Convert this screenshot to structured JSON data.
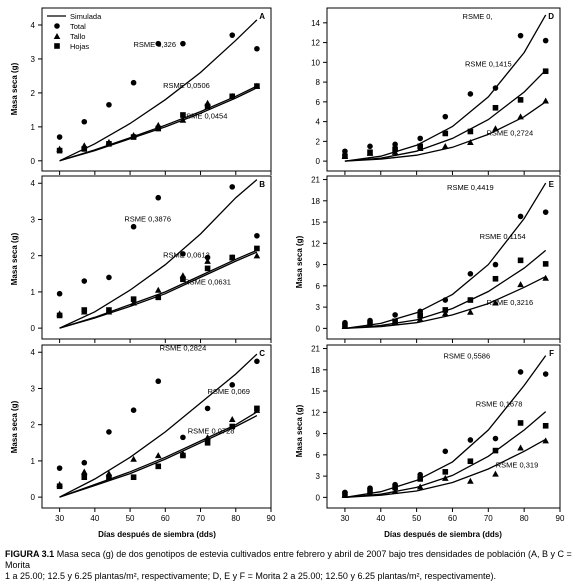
{
  "caption": {
    "label": "FIGURA 3.1",
    "line1": "Masa seca (g) de dos genotipos de estevia cultivados entre febrero y abril de 2007 bajo tres densidades de población (A, B y C = Morita",
    "line2": "1 a 25.00; 12.5 y 6.25 plantas/m², respectivamente; D, E y F = Morita 2 a 25.00; 12.50 y 6.25 plantas/m², respectivamente)."
  },
  "xlabel_left": "Días después de siembra (dds)",
  "xlabel_right": "Días después de siembra (dds)",
  "chart_data": [
    {
      "type": "scatter",
      "panel": "A",
      "ylabel": "Masa seca (g)",
      "xlim": [
        25,
        90
      ],
      "ylim": [
        -0.3,
        4.5
      ],
      "yticks": [
        0,
        1,
        2,
        3,
        4
      ],
      "xticks": [
        30,
        40,
        50,
        60,
        70,
        80,
        90
      ],
      "show_xticks": false,
      "legend": {
        "placement": "top-left",
        "entries": [
          "Simulada",
          "Total",
          "Tallo",
          "Hojas"
        ]
      },
      "series": [
        {
          "name": "Total",
          "marker": "circle",
          "x": [
            30,
            37,
            44,
            51,
            58,
            65,
            79,
            86
          ],
          "y": [
            0.7,
            1.15,
            1.65,
            2.3,
            3.45,
            3.45,
            3.7,
            3.3
          ]
        },
        {
          "name": "Tallo",
          "marker": "triangle",
          "x": [
            30,
            37,
            44,
            51,
            58,
            65,
            72,
            79,
            86
          ],
          "y": [
            0.35,
            0.45,
            0.55,
            0.75,
            1.05,
            1.2,
            1.7,
            1.9,
            2.2
          ]
        },
        {
          "name": "Hojas",
          "marker": "square",
          "x": [
            30,
            37,
            44,
            51,
            58,
            65,
            72,
            79,
            86
          ],
          "y": [
            0.3,
            0.35,
            0.5,
            0.7,
            0.95,
            1.35,
            1.6,
            1.9,
            2.2
          ]
        }
      ],
      "simulated": [
        {
          "x": [
            30,
            40,
            50,
            60,
            70,
            80,
            86
          ],
          "y": [
            0.0,
            0.5,
            1.1,
            1.8,
            2.6,
            3.55,
            4.15
          ]
        },
        {
          "x": [
            30,
            40,
            50,
            60,
            70,
            80,
            86
          ],
          "y": [
            0.0,
            0.32,
            0.68,
            1.05,
            1.45,
            1.9,
            2.2
          ]
        },
        {
          "x": [
            30,
            40,
            50,
            60,
            70,
            80,
            86
          ],
          "y": [
            0.0,
            0.3,
            0.65,
            1.0,
            1.4,
            1.85,
            2.15
          ]
        }
      ],
      "annotations": [
        {
          "text": "RSME 0,326",
          "x": 57,
          "y": 3.35
        },
        {
          "text": "RSME 0,0506",
          "x": 66,
          "y": 2.15
        },
        {
          "text": "RSME 0,0454",
          "x": 71,
          "y": 1.25
        }
      ]
    },
    {
      "type": "scatter",
      "panel": "B",
      "ylabel": "Masa seca (g)",
      "xlim": [
        25,
        90
      ],
      "ylim": [
        -0.3,
        4.2
      ],
      "yticks": [
        0,
        1,
        2,
        3,
        4
      ],
      "xticks": [
        30,
        40,
        50,
        60,
        70,
        80,
        90
      ],
      "show_xticks": false,
      "series": [
        {
          "name": "Total",
          "marker": "circle",
          "x": [
            30,
            37,
            44,
            51,
            58,
            65,
            72,
            79,
            86
          ],
          "y": [
            0.95,
            1.3,
            1.4,
            2.8,
            3.6,
            2.05,
            1.95,
            3.9,
            2.55
          ]
        },
        {
          "name": "Tallo",
          "marker": "triangle",
          "x": [
            30,
            37,
            44,
            51,
            58,
            65,
            72,
            79,
            86
          ],
          "y": [
            0.4,
            0.45,
            0.45,
            0.7,
            1.05,
            1.45,
            1.85,
            1.95,
            2.0
          ]
        },
        {
          "name": "Hojas",
          "marker": "square",
          "x": [
            30,
            37,
            44,
            51,
            58,
            65,
            72,
            79,
            86
          ],
          "y": [
            0.35,
            0.5,
            0.5,
            0.8,
            0.85,
            1.35,
            1.65,
            1.95,
            2.2
          ]
        }
      ],
      "simulated": [
        {
          "x": [
            30,
            40,
            50,
            60,
            70,
            80,
            86
          ],
          "y": [
            0.0,
            0.45,
            1.05,
            1.75,
            2.6,
            3.6,
            4.1
          ]
        },
        {
          "x": [
            30,
            40,
            50,
            60,
            70,
            80,
            86
          ],
          "y": [
            0.0,
            0.3,
            0.65,
            1.0,
            1.45,
            1.9,
            2.15
          ]
        },
        {
          "x": [
            30,
            40,
            50,
            60,
            70,
            80,
            86
          ],
          "y": [
            0.0,
            0.28,
            0.6,
            0.95,
            1.4,
            1.85,
            2.1
          ]
        }
      ],
      "annotations": [
        {
          "text": "RSME 0,3876",
          "x": 55,
          "y": 2.95
        },
        {
          "text": "RSME 0,0613",
          "x": 66,
          "y": 1.95
        },
        {
          "text": "RSME 0,0631",
          "x": 72,
          "y": 1.2
        }
      ]
    },
    {
      "type": "scatter",
      "panel": "C",
      "ylabel": "Masa seca (g)",
      "xlim": [
        25,
        90
      ],
      "ylim": [
        -0.3,
        4.2
      ],
      "yticks": [
        0,
        1,
        2,
        3,
        4
      ],
      "xticks": [
        30,
        40,
        50,
        60,
        70,
        80,
        90
      ],
      "show_xticks": true,
      "series": [
        {
          "name": "Total",
          "marker": "circle",
          "x": [
            30,
            37,
            44,
            51,
            58,
            65,
            72,
            79,
            86
          ],
          "y": [
            0.8,
            0.95,
            1.8,
            2.4,
            3.2,
            1.65,
            2.45,
            3.1,
            3.75
          ]
        },
        {
          "name": "Tallo",
          "marker": "triangle",
          "x": [
            30,
            37,
            44,
            51,
            58,
            65,
            72,
            79,
            86
          ],
          "y": [
            0.35,
            0.7,
            0.65,
            1.05,
            1.15,
            1.2,
            1.65,
            2.15,
            2.4
          ]
        },
        {
          "name": "Hojas",
          "marker": "square",
          "x": [
            30,
            37,
            44,
            51,
            58,
            65,
            72,
            79,
            86
          ],
          "y": [
            0.3,
            0.55,
            0.55,
            0.55,
            0.85,
            1.15,
            1.5,
            1.95,
            2.45
          ]
        }
      ],
      "simulated": [
        {
          "x": [
            30,
            40,
            50,
            60,
            70,
            80,
            86
          ],
          "y": [
            0.0,
            0.5,
            1.1,
            1.8,
            2.6,
            3.4,
            3.95
          ]
        },
        {
          "x": [
            30,
            40,
            50,
            60,
            70,
            80,
            86
          ],
          "y": [
            0.0,
            0.35,
            0.7,
            1.1,
            1.55,
            2.0,
            2.35
          ]
        },
        {
          "x": [
            30,
            40,
            50,
            60,
            70,
            80,
            86
          ],
          "y": [
            0.0,
            0.32,
            0.65,
            1.05,
            1.5,
            1.95,
            2.25
          ]
        }
      ],
      "annotations": [
        {
          "text": "RSME 0,2824",
          "x": 65,
          "y": 4.05
        },
        {
          "text": "RSME 0,069",
          "x": 78,
          "y": 2.85
        },
        {
          "text": "RSME 0,0728",
          "x": 73,
          "y": 1.75
        }
      ]
    },
    {
      "type": "scatter",
      "panel": "D",
      "ylabel": "",
      "xlim": [
        25,
        90
      ],
      "ylim": [
        -1,
        15.5
      ],
      "yticks": [
        0,
        2,
        4,
        6,
        8,
        10,
        12,
        14
      ],
      "xticks": [
        30,
        40,
        50,
        60,
        70,
        80,
        90
      ],
      "show_xticks": false,
      "series": [
        {
          "name": "Total",
          "marker": "circle",
          "x": [
            30,
            37,
            44,
            51,
            58,
            65,
            72,
            79,
            86
          ],
          "y": [
            1.0,
            1.5,
            1.7,
            2.3,
            4.5,
            6.8,
            7.4,
            12.7,
            12.2
          ]
        },
        {
          "name": "Tallo",
          "marker": "triangle",
          "x": [
            30,
            37,
            44,
            51,
            58,
            65,
            72,
            79,
            86
          ],
          "y": [
            0.5,
            0.8,
            0.9,
            1.3,
            1.5,
            1.9,
            3.3,
            4.5,
            6.1
          ]
        },
        {
          "name": "Hojas",
          "marker": "square",
          "x": [
            30,
            37,
            44,
            51,
            58,
            65,
            72,
            79,
            86
          ],
          "y": [
            0.5,
            0.9,
            1.2,
            1.5,
            2.8,
            3.0,
            5.4,
            6.2,
            9.1
          ]
        }
      ],
      "simulated": [
        {
          "x": [
            30,
            40,
            50,
            60,
            70,
            80,
            86
          ],
          "y": [
            0.0,
            0.5,
            1.6,
            3.5,
            6.5,
            11.0,
            14.8
          ]
        },
        {
          "x": [
            30,
            40,
            50,
            60,
            70,
            80,
            86
          ],
          "y": [
            0.0,
            0.3,
            1.0,
            2.3,
            4.2,
            7.0,
            9.2
          ]
        },
        {
          "x": [
            30,
            40,
            50,
            60,
            70,
            80,
            86
          ],
          "y": [
            0.0,
            0.2,
            0.6,
            1.4,
            2.7,
            4.5,
            6.0
          ]
        }
      ],
      "annotations": [
        {
          "text": "RSME 0,",
          "x": 67,
          "y": 14.4
        },
        {
          "text": "RSME 0,1415",
          "x": 70,
          "y": 9.6
        },
        {
          "text": "RSME 0,2724",
          "x": 76,
          "y": 2.6
        }
      ]
    },
    {
      "type": "scatter",
      "panel": "E",
      "ylabel": "Masa seca (g)",
      "xlim": [
        25,
        90
      ],
      "ylim": [
        -1.5,
        21.5
      ],
      "yticks": [
        0,
        3,
        6,
        9,
        12,
        15,
        18,
        21
      ],
      "xticks": [
        30,
        40,
        50,
        60,
        70,
        80,
        90
      ],
      "show_xticks": false,
      "series": [
        {
          "name": "Total",
          "marker": "circle",
          "x": [
            30,
            37,
            44,
            51,
            58,
            65,
            72,
            79,
            86
          ],
          "y": [
            0.8,
            1.1,
            1.9,
            2.4,
            4.0,
            7.7,
            9.0,
            15.8,
            16.4
          ]
        },
        {
          "name": "Tallo",
          "marker": "triangle",
          "x": [
            30,
            37,
            44,
            51,
            58,
            65,
            72,
            79,
            86
          ],
          "y": [
            0.3,
            0.5,
            0.8,
            1.3,
            2.1,
            2.3,
            3.6,
            6.2,
            7.1
          ]
        },
        {
          "name": "Hojas",
          "marker": "square",
          "x": [
            30,
            37,
            44,
            51,
            58,
            65,
            72,
            79,
            86
          ],
          "y": [
            0.4,
            0.6,
            1.0,
            1.8,
            2.6,
            4.0,
            7.0,
            9.6,
            9.1
          ]
        }
      ],
      "simulated": [
        {
          "x": [
            30,
            40,
            50,
            60,
            70,
            80,
            86
          ],
          "y": [
            0.0,
            0.7,
            2.2,
            4.8,
            9.0,
            15.5,
            20.5
          ]
        },
        {
          "x": [
            30,
            40,
            50,
            60,
            70,
            80,
            86
          ],
          "y": [
            0.0,
            0.4,
            1.2,
            2.8,
            5.2,
            8.5,
            11.0
          ]
        },
        {
          "x": [
            30,
            40,
            50,
            60,
            70,
            80,
            86
          ],
          "y": [
            0.0,
            0.25,
            0.8,
            1.9,
            3.5,
            5.8,
            7.3
          ]
        }
      ],
      "annotations": [
        {
          "text": "RSME 0,4419",
          "x": 65,
          "y": 19.5
        },
        {
          "text": "RSME 0,1154",
          "x": 74,
          "y": 12.6
        },
        {
          "text": "RSME 0,3216",
          "x": 76,
          "y": 3.3
        }
      ]
    },
    {
      "type": "scatter",
      "panel": "F",
      "ylabel": "Masa seca (g)",
      "xlim": [
        25,
        90
      ],
      "ylim": [
        -1.5,
        21.5
      ],
      "yticks": [
        0,
        3,
        6,
        9,
        12,
        15,
        18,
        21
      ],
      "xticks": [
        30,
        40,
        50,
        60,
        70,
        80,
        90
      ],
      "show_xticks": true,
      "series": [
        {
          "name": "Total",
          "marker": "circle",
          "x": [
            30,
            37,
            44,
            51,
            58,
            65,
            72,
            79,
            86
          ],
          "y": [
            0.7,
            1.3,
            1.8,
            3.2,
            6.5,
            8.1,
            8.3,
            17.7,
            17.4
          ]
        },
        {
          "name": "Tallo",
          "marker": "triangle",
          "x": [
            30,
            37,
            44,
            51,
            58,
            65,
            72,
            79,
            86
          ],
          "y": [
            0.3,
            0.6,
            0.9,
            1.5,
            2.7,
            2.3,
            3.3,
            7.0,
            8.0
          ]
        },
        {
          "name": "Hojas",
          "marker": "square",
          "x": [
            30,
            37,
            44,
            51,
            58,
            65,
            72,
            79,
            86
          ],
          "y": [
            0.4,
            0.9,
            1.4,
            2.6,
            3.6,
            5.1,
            6.6,
            10.5,
            10.1
          ]
        }
      ],
      "simulated": [
        {
          "x": [
            30,
            40,
            50,
            60,
            70,
            80,
            86
          ],
          "y": [
            0.0,
            0.8,
            2.4,
            5.0,
            9.5,
            15.8,
            20.0
          ]
        },
        {
          "x": [
            30,
            40,
            50,
            60,
            70,
            80,
            86
          ],
          "y": [
            0.0,
            0.45,
            1.4,
            3.1,
            5.8,
            9.5,
            12.1
          ]
        },
        {
          "x": [
            30,
            40,
            50,
            60,
            70,
            80,
            86
          ],
          "y": [
            0.0,
            0.3,
            0.9,
            2.1,
            4.0,
            6.5,
            8.2
          ]
        }
      ],
      "annotations": [
        {
          "text": "RSME 0,5586",
          "x": 64,
          "y": 19.6
        },
        {
          "text": "RSME 0,1678",
          "x": 73,
          "y": 12.8
        },
        {
          "text": "RSME 0,319",
          "x": 78,
          "y": 4.2
        }
      ]
    }
  ]
}
